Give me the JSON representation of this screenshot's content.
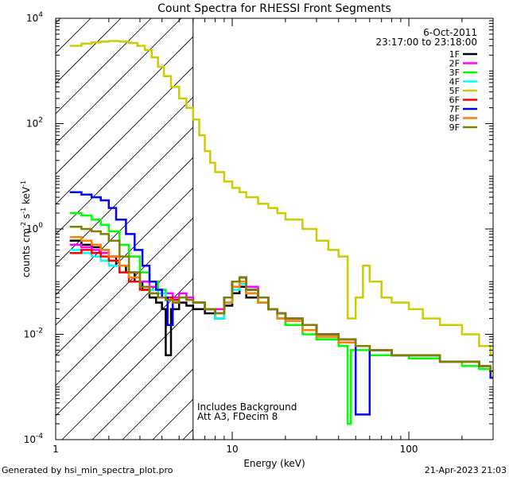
{
  "chart_data": {
    "type": "line",
    "title": "Count Spectra for RHESSI Front Segments",
    "xlabel": "Energy (keV)",
    "ylabel_main": "counts cm",
    "ylabel_sup1": "-2",
    "ylabel_mid": " s",
    "ylabel_sup2": "-1",
    "ylabel_mid2": " keV",
    "ylabel_sup3": "-1",
    "xscale": "log",
    "yscale": "log",
    "xlim": [
      1,
      300
    ],
    "ylim": [
      0.0001,
      10000
    ],
    "x_ticks": [
      {
        "value": 1,
        "label": "1"
      },
      {
        "value": 10,
        "label": "10"
      },
      {
        "value": 100,
        "label": "100"
      }
    ],
    "y_ticks": [
      {
        "value": 0.0001,
        "base": "10",
        "exp": "-4"
      },
      {
        "value": 0.01,
        "base": "10",
        "exp": "-2"
      },
      {
        "value": 1,
        "base": "10",
        "exp": "0"
      },
      {
        "value": 100,
        "base": "10",
        "exp": "2"
      },
      {
        "value": 10000,
        "base": "10",
        "exp": "4"
      }
    ],
    "date": "6-Oct-2011",
    "time_range": "23:17:00 to 23:18:00",
    "hatched_below_kev": 6,
    "annotation_1": "Includes Background",
    "annotation_2": "Att A3, FDecim  8",
    "series": [
      {
        "name": "1F",
        "color": "#000000",
        "x": [
          1.2,
          1.4,
          1.6,
          1.8,
          2.0,
          2.2,
          2.5,
          2.8,
          3.1,
          3.4,
          3.7,
          4.0,
          4.2,
          4.5,
          5.0,
          5.5,
          6.0,
          7,
          8,
          9,
          10,
          11,
          12,
          14,
          16,
          18,
          20,
          25,
          30,
          40,
          50,
          60,
          80,
          100,
          150,
          200,
          250,
          290
        ],
        "y": [
          0.6,
          0.5,
          0.45,
          0.4,
          0.3,
          0.2,
          0.15,
          0.1,
          0.07,
          0.05,
          0.04,
          0.03,
          0.004,
          0.03,
          0.04,
          0.035,
          0.03,
          0.025,
          0.02,
          0.035,
          0.06,
          0.08,
          0.05,
          0.04,
          0.03,
          0.02,
          0.015,
          0.012,
          0.008,
          0.007,
          0.006,
          0.005,
          0.004,
          0.004,
          0.003,
          0.003,
          0.0025,
          0.002
        ]
      },
      {
        "name": "2F",
        "color": "#ff00ff",
        "x": [
          1.2,
          1.4,
          1.6,
          1.8,
          2.0,
          2.3,
          2.6,
          3.0,
          3.4,
          3.8,
          4.2,
          4.6,
          5.0,
          5.5,
          6,
          7,
          8,
          9,
          10,
          11,
          12,
          14,
          16,
          18,
          20,
          25,
          30,
          40,
          50,
          60,
          80,
          100,
          150,
          200,
          250,
          290
        ],
        "y": [
          0.5,
          0.45,
          0.4,
          0.35,
          0.3,
          0.2,
          0.15,
          0.1,
          0.08,
          0.07,
          0.06,
          0.05,
          0.06,
          0.05,
          0.04,
          0.03,
          0.03,
          0.05,
          0.1,
          0.12,
          0.08,
          0.05,
          0.03,
          0.025,
          0.02,
          0.015,
          0.01,
          0.008,
          0.006,
          0.005,
          0.004,
          0.004,
          0.003,
          0.003,
          0.0025,
          0.002
        ]
      },
      {
        "name": "3F",
        "color": "#00ff00",
        "x": [
          1.2,
          1.4,
          1.6,
          1.8,
          2.0,
          2.3,
          2.6,
          3.0,
          3.4,
          3.8,
          4.2,
          4.6,
          5.0,
          5.5,
          6,
          7,
          8,
          9,
          10,
          11,
          12,
          14,
          16,
          18,
          20,
          25,
          30,
          40,
          45,
          47,
          50,
          60,
          80,
          100,
          150,
          200,
          250,
          290
        ],
        "y": [
          2.0,
          1.8,
          1.5,
          1.2,
          0.9,
          0.5,
          0.3,
          0.15,
          0.1,
          0.07,
          0.05,
          0.04,
          0.05,
          0.045,
          0.04,
          0.03,
          0.025,
          0.04,
          0.08,
          0.1,
          0.06,
          0.04,
          0.03,
          0.02,
          0.015,
          0.01,
          0.008,
          0.006,
          0.0002,
          0.005,
          0.005,
          0.004,
          0.004,
          0.0035,
          0.003,
          0.0025,
          0.0022,
          0.002
        ]
      },
      {
        "name": "4F",
        "color": "#00ffff",
        "x": [
          1.2,
          1.4,
          1.6,
          1.8,
          2.0,
          2.3,
          2.6,
          3.0,
          3.4,
          3.8,
          4.2,
          4.6,
          5.0,
          5.5,
          6,
          7,
          8,
          9,
          10,
          11,
          12,
          14,
          16,
          18,
          20,
          25,
          30,
          40,
          50,
          60,
          80,
          100,
          150,
          200,
          250,
          290
        ],
        "y": [
          0.4,
          0.35,
          0.3,
          0.25,
          0.2,
          0.15,
          0.1,
          0.08,
          0.07,
          0.06,
          0.05,
          0.045,
          0.05,
          0.045,
          0.04,
          0.03,
          0.02,
          0.04,
          0.07,
          0.09,
          0.06,
          0.04,
          0.03,
          0.02,
          0.018,
          0.012,
          0.009,
          0.007,
          0.006,
          0.005,
          0.004,
          0.004,
          0.003,
          0.003,
          0.0025,
          0.002
        ]
      },
      {
        "name": "5F",
        "color": "#cccc00",
        "x": [
          1.2,
          1.4,
          1.6,
          1.8,
          2.0,
          2.3,
          2.6,
          2.9,
          3.2,
          3.5,
          3.8,
          4.1,
          4.5,
          5.0,
          5.5,
          6,
          6.5,
          7,
          7.5,
          8,
          9,
          10,
          11,
          12,
          14,
          16,
          18,
          20,
          25,
          30,
          35,
          40,
          45,
          50,
          55,
          60,
          70,
          80,
          100,
          120,
          150,
          200,
          250,
          290
        ],
        "y": [
          3000,
          3300,
          3500,
          3600,
          3700,
          3600,
          3400,
          3000,
          2500,
          1800,
          1200,
          800,
          500,
          300,
          200,
          120,
          60,
          30,
          18,
          12,
          8,
          6,
          5,
          4,
          3,
          2.5,
          2,
          1.5,
          1,
          0.6,
          0.4,
          0.3,
          0.02,
          0.05,
          0.2,
          0.1,
          0.05,
          0.04,
          0.03,
          0.02,
          0.015,
          0.01,
          0.006,
          0.004
        ]
      },
      {
        "name": "6F",
        "color": "#ff0000",
        "x": [
          1.2,
          1.4,
          1.6,
          1.8,
          2.0,
          2.3,
          2.6,
          3.0,
          3.4,
          3.8,
          4.2,
          4.6,
          5.0,
          5.5,
          6,
          7,
          8,
          9,
          10,
          11,
          12,
          14,
          16,
          18,
          20,
          25,
          30,
          40,
          50,
          60,
          80,
          100,
          150,
          200,
          250,
          290
        ],
        "y": [
          0.35,
          0.4,
          0.35,
          0.3,
          0.25,
          0.15,
          0.1,
          0.07,
          0.06,
          0.05,
          0.05,
          0.045,
          0.05,
          0.045,
          0.04,
          0.03,
          0.025,
          0.05,
          0.1,
          0.12,
          0.07,
          0.05,
          0.03,
          0.025,
          0.02,
          0.015,
          0.01,
          0.008,
          0.006,
          0.005,
          0.004,
          0.004,
          0.003,
          0.003,
          0.0025,
          0.002
        ]
      },
      {
        "name": "7F",
        "color": "#0000ff",
        "x": [
          1.2,
          1.4,
          1.6,
          1.8,
          2.0,
          2.2,
          2.5,
          2.8,
          3.1,
          3.4,
          3.7,
          4.0,
          4.3,
          4.6,
          5.0,
          5.5,
          6,
          7,
          8,
          9,
          10,
          11,
          12,
          14,
          16,
          18,
          20,
          25,
          30,
          40,
          50,
          60,
          80,
          100,
          150,
          200,
          250,
          290
        ],
        "y": [
          5,
          4.5,
          4,
          3.5,
          2.5,
          1.5,
          0.8,
          0.4,
          0.2,
          0.1,
          0.07,
          0.05,
          0.015,
          0.04,
          0.05,
          0.045,
          0.04,
          0.03,
          0.025,
          0.05,
          0.1,
          0.12,
          0.07,
          0.05,
          0.03,
          0.025,
          0.02,
          0.015,
          0.01,
          0.008,
          0.0003,
          0.005,
          0.004,
          0.004,
          0.003,
          0.003,
          0.0025,
          0.0015
        ]
      },
      {
        "name": "8F",
        "color": "#ff8000",
        "x": [
          1.2,
          1.4,
          1.6,
          1.8,
          2.0,
          2.3,
          2.6,
          3.0,
          3.4,
          3.8,
          4.2,
          4.6,
          5.0,
          5.5,
          6,
          7,
          8,
          9,
          10,
          11,
          12,
          14,
          16,
          18,
          20,
          25,
          30,
          40,
          50,
          60,
          80,
          100,
          150,
          200,
          250,
          290
        ],
        "y": [
          0.7,
          0.6,
          0.5,
          0.4,
          0.3,
          0.2,
          0.12,
          0.08,
          0.06,
          0.05,
          0.045,
          0.04,
          0.05,
          0.045,
          0.04,
          0.03,
          0.025,
          0.04,
          0.08,
          0.1,
          0.06,
          0.04,
          0.03,
          0.02,
          0.018,
          0.012,
          0.009,
          0.007,
          0.006,
          0.005,
          0.004,
          0.004,
          0.003,
          0.003,
          0.0025,
          0.002
        ]
      },
      {
        "name": "9F",
        "color": "#808000",
        "x": [
          1.2,
          1.4,
          1.6,
          1.8,
          2.0,
          2.3,
          2.6,
          3.0,
          3.4,
          3.8,
          4.2,
          4.6,
          5.0,
          5.5,
          6,
          7,
          8,
          9,
          10,
          11,
          12,
          14,
          16,
          18,
          20,
          25,
          30,
          40,
          50,
          60,
          80,
          100,
          150,
          200,
          250,
          290
        ],
        "y": [
          1.1,
          1.0,
          0.9,
          0.8,
          0.6,
          0.3,
          0.15,
          0.08,
          0.06,
          0.05,
          0.045,
          0.04,
          0.05,
          0.045,
          0.04,
          0.03,
          0.025,
          0.05,
          0.1,
          0.12,
          0.07,
          0.05,
          0.03,
          0.025,
          0.02,
          0.015,
          0.01,
          0.008,
          0.006,
          0.005,
          0.004,
          0.004,
          0.003,
          0.003,
          0.0025,
          0.002
        ]
      }
    ]
  },
  "footer": {
    "generated_by": "Generated by hsi_min_spectra_plot.pro",
    "timestamp": "21-Apr-2023 21:03"
  }
}
